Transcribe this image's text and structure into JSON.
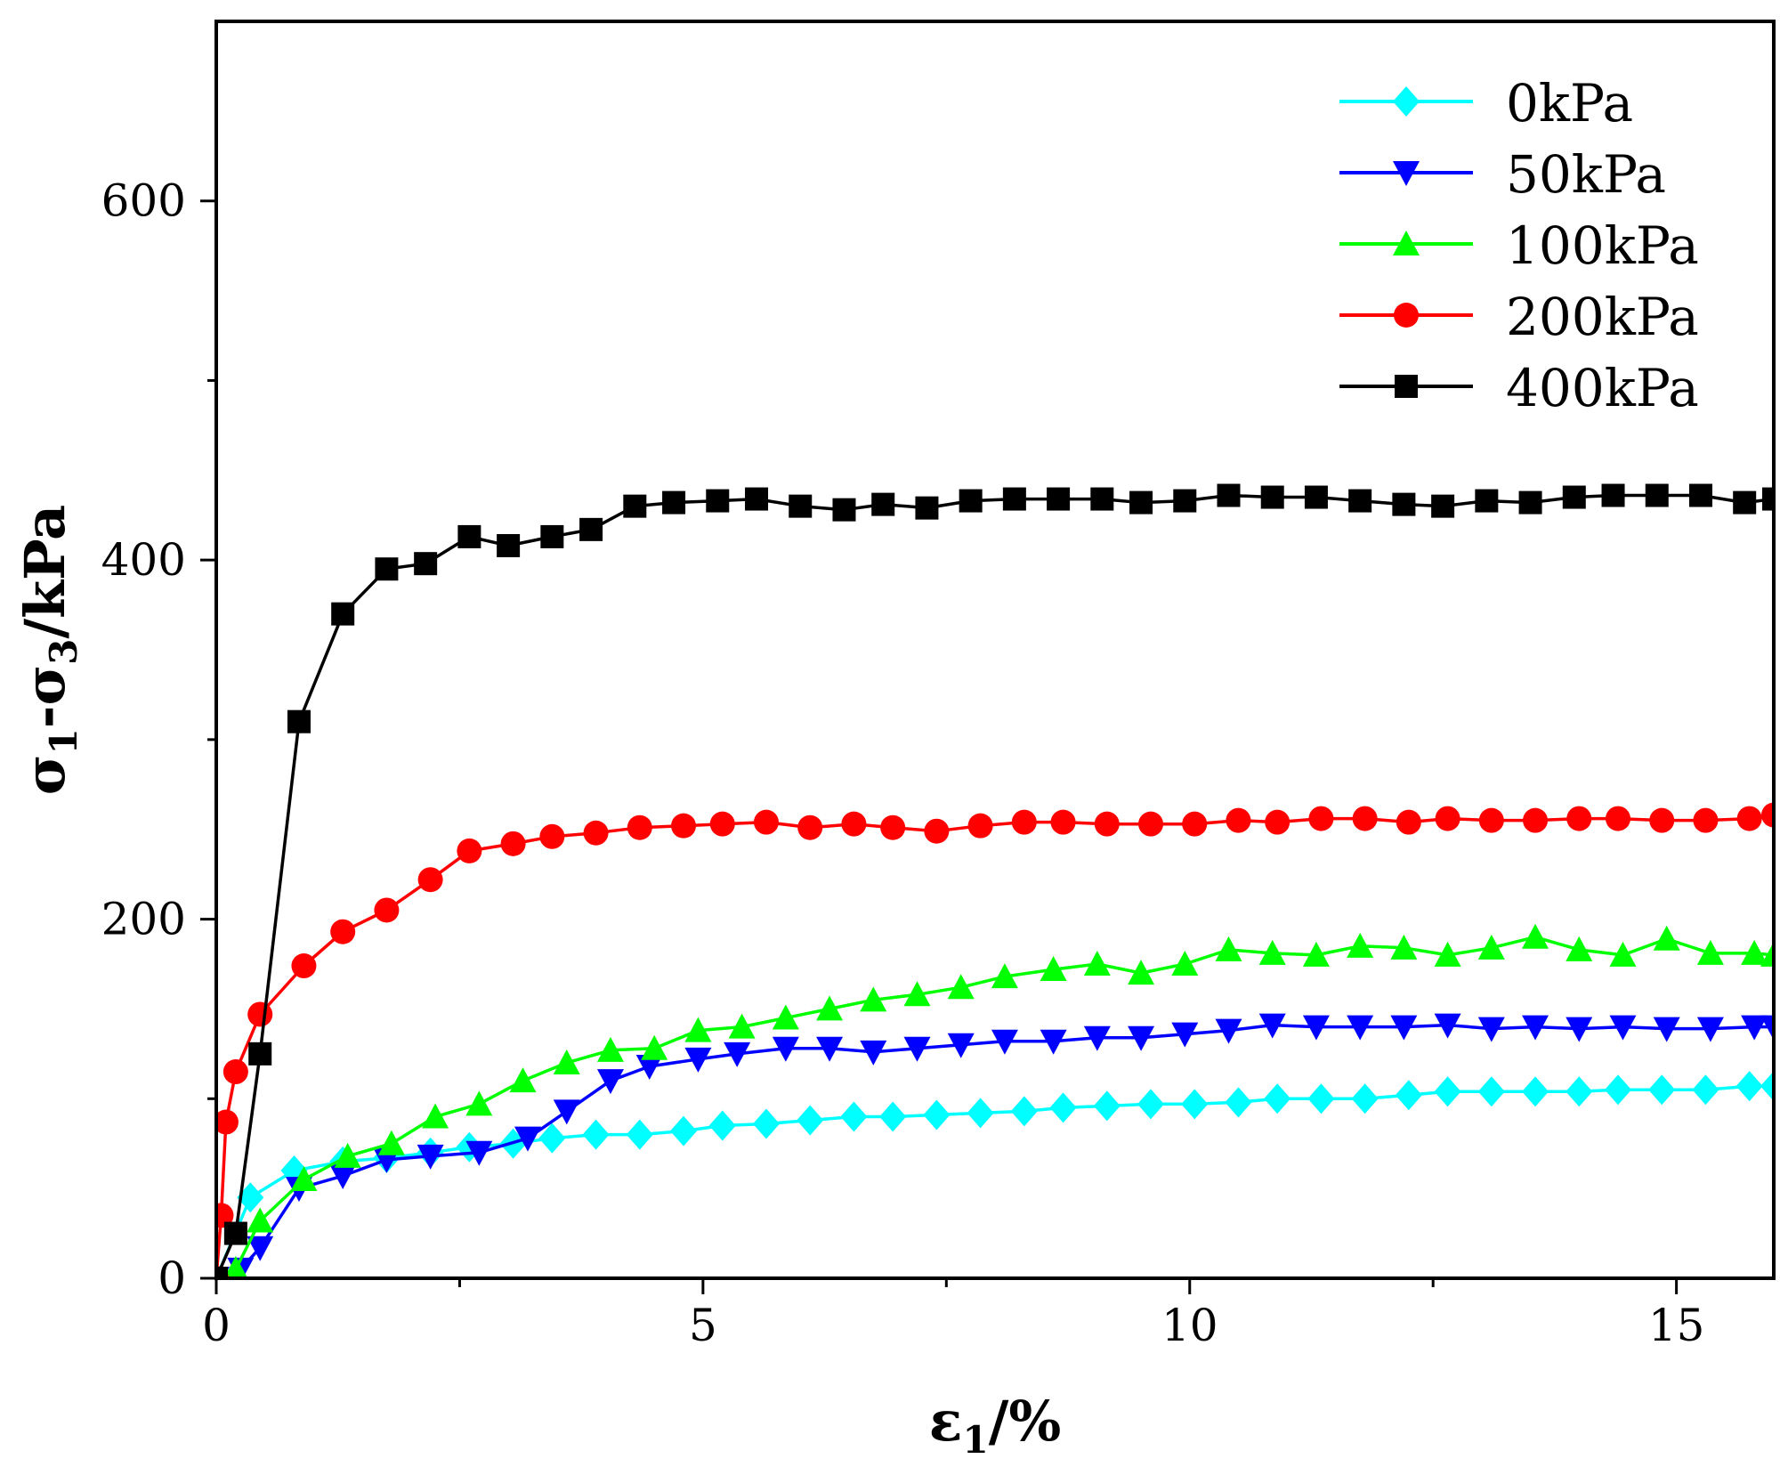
{
  "chart_data": {
    "type": "line",
    "title": "",
    "xlabel": "ε1/%",
    "ylabel": "σ1-σ3/kPa",
    "xlabel_parts": {
      "base": "ε",
      "sub": "1",
      "suffix": "/%"
    },
    "ylabel_parts": {
      "s1": "σ",
      "sub1": "1",
      "dash": "-",
      "s2": "σ",
      "sub2": "3",
      "suffix": "/kPa"
    },
    "xlim": [
      0,
      16
    ],
    "ylim": [
      0,
      700
    ],
    "x_ticks": [
      0,
      5,
      10,
      15
    ],
    "x_tick_labels": [
      "0",
      "5",
      "10",
      "15"
    ],
    "y_ticks": [
      0,
      200,
      400,
      600
    ],
    "y_tick_labels": [
      "0",
      "200",
      "400",
      "600"
    ],
    "grid": false,
    "legend_position": "top-right",
    "series": [
      {
        "name": "0kPa",
        "color": "#00FFFF",
        "marker": "diamond",
        "x": [
          0,
          0.35,
          0.8,
          1.3,
          1.75,
          2.2,
          2.6,
          3.05,
          3.45,
          3.9,
          4.35,
          4.8,
          5.2,
          5.65,
          6.1,
          6.55,
          6.95,
          7.4,
          7.85,
          8.3,
          8.7,
          9.15,
          9.6,
          10.05,
          10.5,
          10.9,
          11.35,
          11.8,
          12.25,
          12.65,
          13.1,
          13.55,
          14.0,
          14.4,
          14.85,
          15.3,
          15.75,
          16.0
        ],
        "y": [
          0,
          45,
          60,
          65,
          67,
          70,
          73,
          75,
          78,
          80,
          80,
          82,
          85,
          86,
          88,
          90,
          90,
          91,
          92,
          93,
          95,
          96,
          97,
          97,
          98,
          100,
          100,
          100,
          102,
          104,
          104,
          104,
          104,
          105,
          105,
          105,
          107,
          107
        ]
      },
      {
        "name": "50kPa",
        "color": "#0000FF",
        "marker": "triangle-down",
        "x": [
          0,
          0.25,
          0.45,
          0.85,
          1.3,
          1.75,
          2.2,
          2.7,
          3.2,
          3.6,
          4.05,
          4.45,
          4.95,
          5.35,
          5.85,
          6.3,
          6.75,
          7.2,
          7.65,
          8.1,
          8.6,
          9.05,
          9.5,
          9.95,
          10.4,
          10.85,
          11.3,
          11.75,
          12.2,
          12.65,
          13.1,
          13.55,
          14.0,
          14.45,
          14.9,
          15.35,
          15.8,
          16.0
        ],
        "y": [
          0,
          5,
          17,
          50,
          57,
          66,
          68,
          70,
          78,
          93,
          110,
          118,
          122,
          125,
          128,
          128,
          126,
          128,
          130,
          132,
          132,
          134,
          134,
          136,
          138,
          141,
          140,
          140,
          140,
          141,
          139,
          140,
          139,
          140,
          139,
          139,
          140,
          140
        ]
      },
      {
        "name": "100kPa",
        "color": "#00FF00",
        "marker": "triangle-up",
        "x": [
          0,
          0.2,
          0.45,
          0.9,
          1.35,
          1.8,
          2.25,
          2.7,
          3.15,
          3.6,
          4.05,
          4.5,
          4.95,
          5.4,
          5.85,
          6.3,
          6.75,
          7.2,
          7.65,
          8.1,
          8.6,
          9.05,
          9.5,
          9.95,
          10.4,
          10.85,
          11.3,
          11.75,
          12.2,
          12.65,
          13.1,
          13.55,
          14.0,
          14.45,
          14.9,
          15.35,
          15.8,
          16.0
        ],
        "y": [
          0,
          5,
          32,
          55,
          68,
          75,
          90,
          97,
          110,
          120,
          127,
          128,
          138,
          140,
          145,
          150,
          155,
          158,
          162,
          168,
          172,
          175,
          170,
          175,
          183,
          181,
          180,
          185,
          184,
          180,
          184,
          190,
          183,
          180,
          189,
          181,
          181,
          180
        ]
      },
      {
        "name": "200kPa",
        "color": "#FF0000",
        "marker": "circle",
        "x": [
          0,
          0.05,
          0.1,
          0.2,
          0.45,
          0.9,
          1.3,
          1.75,
          2.2,
          2.6,
          3.05,
          3.45,
          3.9,
          4.35,
          4.8,
          5.2,
          5.65,
          6.1,
          6.55,
          6.95,
          7.4,
          7.85,
          8.3,
          8.7,
          9.15,
          9.6,
          10.05,
          10.5,
          10.9,
          11.35,
          11.8,
          12.25,
          12.65,
          13.1,
          13.55,
          14.0,
          14.4,
          14.85,
          15.3,
          15.75,
          16.0
        ],
        "y": [
          0,
          35,
          87,
          115,
          147,
          174,
          193,
          205,
          222,
          238,
          242,
          246,
          248,
          251,
          252,
          253,
          254,
          251,
          253,
          251,
          249,
          252,
          254,
          254,
          253,
          253,
          253,
          255,
          254,
          256,
          256,
          254,
          256,
          255,
          255,
          256,
          256,
          255,
          255,
          256,
          258
        ]
      },
      {
        "name": "400kPa",
        "color": "#000000",
        "marker": "square",
        "x": [
          0,
          0.2,
          0.45,
          0.85,
          1.3,
          1.75,
          2.15,
          2.6,
          3.0,
          3.45,
          3.85,
          4.3,
          4.7,
          5.15,
          5.55,
          6.0,
          6.45,
          6.85,
          7.3,
          7.75,
          8.2,
          8.65,
          9.1,
          9.5,
          9.95,
          10.4,
          10.85,
          11.3,
          11.75,
          12.2,
          12.6,
          13.05,
          13.5,
          13.95,
          14.35,
          14.8,
          15.25,
          15.7,
          16.0
        ],
        "y": [
          0,
          25,
          125,
          310,
          370,
          395,
          398,
          413,
          408,
          413,
          417,
          430,
          432,
          433,
          434,
          430,
          428,
          431,
          429,
          433,
          434,
          434,
          434,
          432,
          433,
          436,
          435,
          435,
          433,
          431,
          430,
          433,
          432,
          435,
          436,
          436,
          436,
          432,
          434
        ]
      }
    ]
  }
}
